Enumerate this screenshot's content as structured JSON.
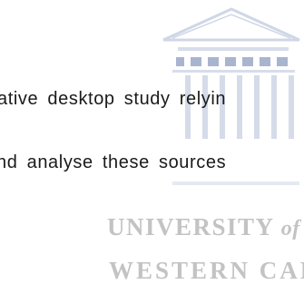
{
  "document": {
    "body_lines": [
      "ative desktop study relyin",
      "nd analyse these sources"
    ]
  },
  "watermark": {
    "line_1_main": "UNIVERSITY ",
    "line_1_italic": "of the",
    "line_2": "WESTERN CAPE",
    "color": "#c3c3c3"
  }
}
